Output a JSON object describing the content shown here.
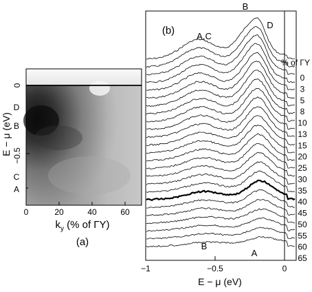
{
  "figure": {
    "panel_a": {
      "label": "(a)",
      "xlabel": "k",
      "xlabel_sub": "y",
      "xlabel_rest": " (% of ΓY)",
      "ylabel": "E − μ (eV)",
      "xticks": [
        "0",
        "20",
        "40",
        "60"
      ],
      "yticks": [
        "0",
        "−0.5"
      ],
      "band_labels": [
        "D",
        "B",
        "C",
        "A"
      ]
    },
    "panel_b": {
      "label": "(b)",
      "xlabel": "E − μ (eV)",
      "xticks": [
        "−1",
        "−0.5",
        "0"
      ],
      "right_axis_title": "% of ΓY",
      "right_labels": [
        "0",
        "3",
        "5",
        "8",
        "10",
        "13",
        "15",
        "20",
        "25",
        "30",
        "35",
        "40",
        "45",
        "50",
        "55",
        "60",
        "65"
      ],
      "peak_labels": {
        "top_b": "B",
        "top_ac": "A,C",
        "top_d": "D",
        "bottom_b": "B",
        "bottom_a": "A"
      }
    }
  },
  "chart_data": [
    {
      "type": "heatmap",
      "title": "(a)",
      "xlabel": "k_y (% of ΓY)",
      "ylabel": "E − μ (eV)",
      "xlim": [
        0,
        70
      ],
      "ylim": [
        -0.75,
        0.08
      ],
      "xticks": [
        0,
        20,
        40,
        60
      ],
      "yticks": [
        0,
        -0.5
      ],
      "annotations": [
        "D",
        "B",
        "C",
        "A"
      ]
    },
    {
      "type": "line",
      "title": "(b)",
      "xlabel": "E − μ (eV)",
      "xlim": [
        -1,
        0.05
      ],
      "xticks": [
        -1,
        -0.5,
        0
      ],
      "series_labels_pct_of_GY": [
        0,
        3,
        5,
        8,
        10,
        13,
        15,
        20,
        25,
        30,
        35,
        40,
        45,
        50,
        55,
        60,
        65
      ],
      "annotations": [
        "B",
        "A,C",
        "D",
        "B",
        "A"
      ]
    }
  ]
}
